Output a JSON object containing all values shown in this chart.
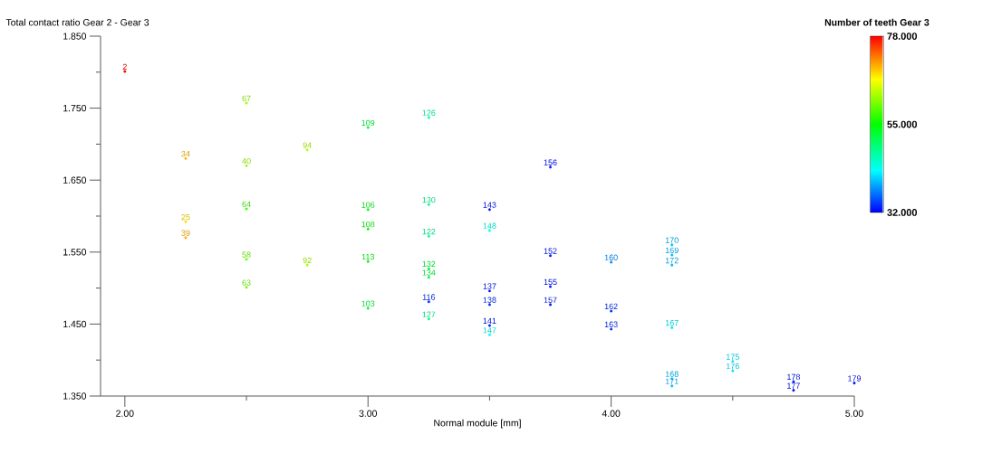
{
  "chart_data": {
    "type": "scatter",
    "ylabel": "Total contact ratio Gear 2 - Gear 3",
    "xlabel": "Normal module [mm]",
    "clabel": "Number of teeth Gear 3",
    "marker": "circle",
    "x": [
      2.0,
      2.25,
      2.25,
      2.25,
      2.5,
      2.5,
      2.5,
      2.5,
      2.5,
      2.75,
      2.75,
      3.0,
      3.0,
      3.0,
      3.0,
      3.0,
      3.25,
      3.25,
      3.25,
      3.25,
      3.25,
      3.25,
      3.25,
      3.5,
      3.5,
      3.5,
      3.5,
      3.5,
      3.5,
      3.75,
      3.75,
      3.75,
      3.75,
      4.0,
      4.0,
      4.0,
      4.25,
      4.25,
      4.25,
      4.25,
      4.25,
      4.25,
      4.5,
      4.5,
      4.75,
      4.75,
      5.0
    ],
    "values": [
      1.801,
      1.68,
      1.592,
      1.57,
      1.757,
      1.67,
      1.61,
      1.54,
      1.501,
      1.692,
      1.532,
      1.723,
      1.609,
      1.582,
      1.537,
      1.472,
      1.737,
      1.616,
      1.572,
      1.527,
      1.515,
      1.481,
      1.457,
      1.609,
      1.58,
      1.496,
      1.477,
      1.448,
      1.435,
      1.668,
      1.545,
      1.502,
      1.477,
      1.536,
      1.468,
      1.443,
      1.56,
      1.546,
      1.532,
      1.445,
      1.374,
      1.364,
      1.398,
      1.385,
      1.37,
      1.358,
      1.368
    ],
    "annotations": [
      {
        "text": "2",
        "x": 2.0,
        "y": 1.801
      },
      {
        "text": "34",
        "x": 2.25,
        "y": 1.68
      },
      {
        "text": "25",
        "x": 2.25,
        "y": 1.592
      },
      {
        "text": "39",
        "x": 2.25,
        "y": 1.57
      },
      {
        "text": "67",
        "x": 2.5,
        "y": 1.757
      },
      {
        "text": "40",
        "x": 2.5,
        "y": 1.67
      },
      {
        "text": "64",
        "x": 2.5,
        "y": 1.61
      },
      {
        "text": "58",
        "x": 2.5,
        "y": 1.54
      },
      {
        "text": "63",
        "x": 2.5,
        "y": 1.501
      },
      {
        "text": "94",
        "x": 2.75,
        "y": 1.692
      },
      {
        "text": "92",
        "x": 2.75,
        "y": 1.532
      },
      {
        "text": "109",
        "x": 3.0,
        "y": 1.723
      },
      {
        "text": "106",
        "x": 3.0,
        "y": 1.609
      },
      {
        "text": "108",
        "x": 3.0,
        "y": 1.582
      },
      {
        "text": "113",
        "x": 3.0,
        "y": 1.537
      },
      {
        "text": "103",
        "x": 3.0,
        "y": 1.472
      },
      {
        "text": "126",
        "x": 3.25,
        "y": 1.737
      },
      {
        "text": "130",
        "x": 3.25,
        "y": 1.616
      },
      {
        "text": "122",
        "x": 3.25,
        "y": 1.572
      },
      {
        "text": "132",
        "x": 3.25,
        "y": 1.527
      },
      {
        "text": "134",
        "x": 3.25,
        "y": 1.515
      },
      {
        "text": "116",
        "x": 3.25,
        "y": 1.481
      },
      {
        "text": "127",
        "x": 3.25,
        "y": 1.457
      },
      {
        "text": "143",
        "x": 3.5,
        "y": 1.609
      },
      {
        "text": "148",
        "x": 3.5,
        "y": 1.58
      },
      {
        "text": "137",
        "x": 3.5,
        "y": 1.496
      },
      {
        "text": "138",
        "x": 3.5,
        "y": 1.477
      },
      {
        "text": "141",
        "x": 3.5,
        "y": 1.448
      },
      {
        "text": "147",
        "x": 3.5,
        "y": 1.435
      },
      {
        "text": "156",
        "x": 3.75,
        "y": 1.668
      },
      {
        "text": "152",
        "x": 3.75,
        "y": 1.545
      },
      {
        "text": "155",
        "x": 3.75,
        "y": 1.502
      },
      {
        "text": "157",
        "x": 3.75,
        "y": 1.477
      },
      {
        "text": "160",
        "x": 4.0,
        "y": 1.536
      },
      {
        "text": "162",
        "x": 4.0,
        "y": 1.468
      },
      {
        "text": "163",
        "x": 4.0,
        "y": 1.443
      },
      {
        "text": "170",
        "x": 4.25,
        "y": 1.56
      },
      {
        "text": "169",
        "x": 4.25,
        "y": 1.546
      },
      {
        "text": "172",
        "x": 4.25,
        "y": 1.532
      },
      {
        "text": "167",
        "x": 4.25,
        "y": 1.445
      },
      {
        "text": "168",
        "x": 4.25,
        "y": 1.374
      },
      {
        "text": "171",
        "x": 4.25,
        "y": 1.364
      },
      {
        "text": "175",
        "x": 4.5,
        "y": 1.398
      },
      {
        "text": "176",
        "x": 4.5,
        "y": 1.385
      },
      {
        "text": "178",
        "x": 4.75,
        "y": 1.37
      },
      {
        "text": "177",
        "x": 4.75,
        "y": 1.358
      },
      {
        "text": "179",
        "x": 5.0,
        "y": 1.368
      }
    ],
    "cvalues": [
      78,
      70,
      68,
      70,
      62,
      62,
      58,
      60,
      60,
      63,
      63,
      52,
      54,
      55,
      55,
      52,
      47,
      48,
      48,
      52,
      52,
      34,
      48,
      33,
      44,
      33,
      34,
      33,
      44,
      33,
      33,
      33,
      33,
      38,
      34,
      34,
      40,
      40,
      40,
      42,
      40,
      40,
      42,
      42,
      33,
      33,
      33
    ],
    "xlim": [
      1.9,
      5.0
    ],
    "ylim": [
      1.35,
      1.85
    ],
    "xticks": [
      {
        "value": 2.0,
        "label": "2.00"
      },
      {
        "value": 2.5,
        "label": null
      },
      {
        "value": 3.0,
        "label": "3.00"
      },
      {
        "value": 3.5,
        "label": null
      },
      {
        "value": 4.0,
        "label": "4.00"
      },
      {
        "value": 4.5,
        "label": null
      },
      {
        "value": 5.0,
        "label": "5.00"
      }
    ],
    "yticks": [
      {
        "value": 1.35,
        "label": "1.350"
      },
      {
        "value": 1.4,
        "label": null
      },
      {
        "value": 1.45,
        "label": "1.450"
      },
      {
        "value": 1.5,
        "label": null
      },
      {
        "value": 1.55,
        "label": "1.550"
      },
      {
        "value": 1.6,
        "label": null
      },
      {
        "value": 1.65,
        "label": "1.650"
      },
      {
        "value": 1.7,
        "label": null
      },
      {
        "value": 1.75,
        "label": "1.750"
      },
      {
        "value": 1.8,
        "label": null
      },
      {
        "value": 1.85,
        "label": "1.850"
      }
    ],
    "clim": [
      32,
      78
    ],
    "cticks": [
      {
        "value": 32,
        "label": "32.000"
      },
      {
        "value": 55,
        "label": "55.000"
      },
      {
        "value": 78,
        "label": "78.000"
      }
    ]
  }
}
